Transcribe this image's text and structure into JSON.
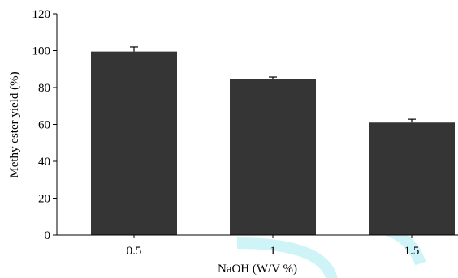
{
  "colors": {
    "bar_fill": "#353535",
    "axis": "#000000",
    "watermark": "#c9f3f6"
  },
  "chart_data": {
    "type": "bar",
    "categories": [
      "0.5",
      "1",
      "1.5"
    ],
    "values": [
      99.5,
      84.5,
      61
    ],
    "error": [
      2.5,
      1.2,
      1.8
    ],
    "xlabel": "NaOH (W/V %)",
    "ylabel": "Methy ester yield (%)",
    "ylim": [
      0,
      120
    ],
    "yticks": [
      0,
      20,
      40,
      60,
      80,
      100,
      120
    ],
    "grid": false,
    "legend": "none"
  }
}
